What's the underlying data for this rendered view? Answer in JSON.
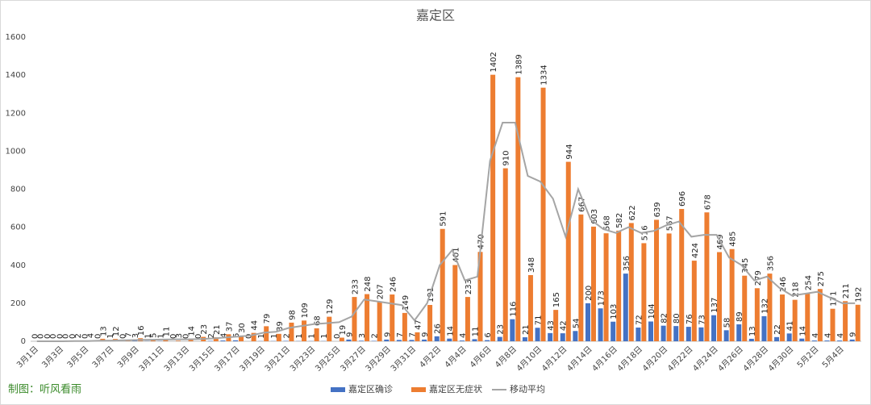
{
  "chart_data": {
    "type": "bar_line",
    "title": "嘉定区",
    "source": "制图：听风看雨",
    "categories": [
      "3月1日",
      null,
      "3月3日",
      null,
      "3月5日",
      null,
      "3月7日",
      null,
      "3月9日",
      null,
      "3月11日",
      null,
      "3月13日",
      null,
      "3月15日",
      null,
      "3月17日",
      null,
      "3月19日",
      null,
      "3月21日",
      null,
      "3月23日",
      null,
      "3月25日",
      null,
      "3月27日",
      null,
      "3月29日",
      null,
      "3月31日",
      null,
      "4月2日",
      null,
      "4月4日",
      null,
      "4月6日",
      null,
      "4月8日",
      null,
      "4月10日",
      null,
      "4月12日",
      null,
      "4月14日",
      null,
      "4月16日",
      null,
      "4月18日",
      null,
      "4月20日",
      null,
      "4月22日",
      null,
      "4月24日",
      null,
      "4月26日",
      null,
      "4月28日",
      null,
      "4月30日",
      null,
      "5月2日",
      null,
      "5月4日",
      null
    ],
    "series": [
      {
        "name": "嘉定区确诊",
        "color": "#4472c4",
        "kind": "bar",
        "values": [
          0,
          0,
          0,
          0,
          0,
          0,
          1,
          0,
          3,
          1,
          1,
          0,
          0,
          0,
          2,
          4,
          5,
          0,
          1,
          1,
          2,
          1,
          1,
          1,
          0,
          9,
          3,
          2,
          9,
          7,
          7,
          9,
          26,
          14,
          4,
          11,
          6,
          23,
          116,
          21,
          71,
          43,
          42,
          54,
          200,
          173,
          103,
          356,
          72,
          104,
          82,
          80,
          76,
          73,
          137,
          58,
          89,
          13,
          132,
          22,
          41,
          14,
          4,
          4,
          4,
          9
        ]
      },
      {
        "name": "嘉定区无症状",
        "color": "#ed7d31",
        "kind": "bar",
        "values": [
          0,
          0,
          0,
          2,
          4,
          13,
          12,
          7,
          16,
          5,
          11,
          3,
          14,
          23,
          21,
          37,
          30,
          44,
          79,
          39,
          98,
          109,
          68,
          129,
          19,
          233,
          248,
          207,
          246,
          149,
          47,
          191,
          591,
          401,
          233,
          470,
          1402,
          910,
          1389,
          348,
          1334,
          165,
          944,
          667,
          603,
          568,
          582,
          622,
          516,
          639,
          567,
          696,
          424,
          678,
          469,
          485,
          345,
          279,
          356,
          246,
          218,
          254,
          275,
          171,
          211,
          192
        ]
      },
      {
        "name": "移动平均",
        "color": "#a5a5a5",
        "kind": "line",
        "values": [
          0,
          0,
          0,
          1,
          1,
          3,
          4,
          5,
          7,
          8,
          9,
          10,
          10,
          12,
          15,
          20,
          25,
          30,
          45,
          50,
          70,
          80,
          90,
          95,
          100,
          130,
          220,
          210,
          200,
          190,
          110,
          200,
          400,
          480,
          320,
          340,
          950,
          1150,
          1150,
          870,
          840,
          750,
          550,
          800,
          640,
          590,
          570,
          600,
          570,
          580,
          610,
          630,
          550,
          560,
          560,
          440,
          400,
          320,
          340,
          280,
          240,
          250,
          260,
          230,
          200,
          200
        ]
      }
    ],
    "ylim": [
      0,
      1600
    ],
    "yticks": [
      0,
      200,
      400,
      600,
      800,
      1000,
      1200,
      1400,
      1600
    ],
    "grid": false
  }
}
